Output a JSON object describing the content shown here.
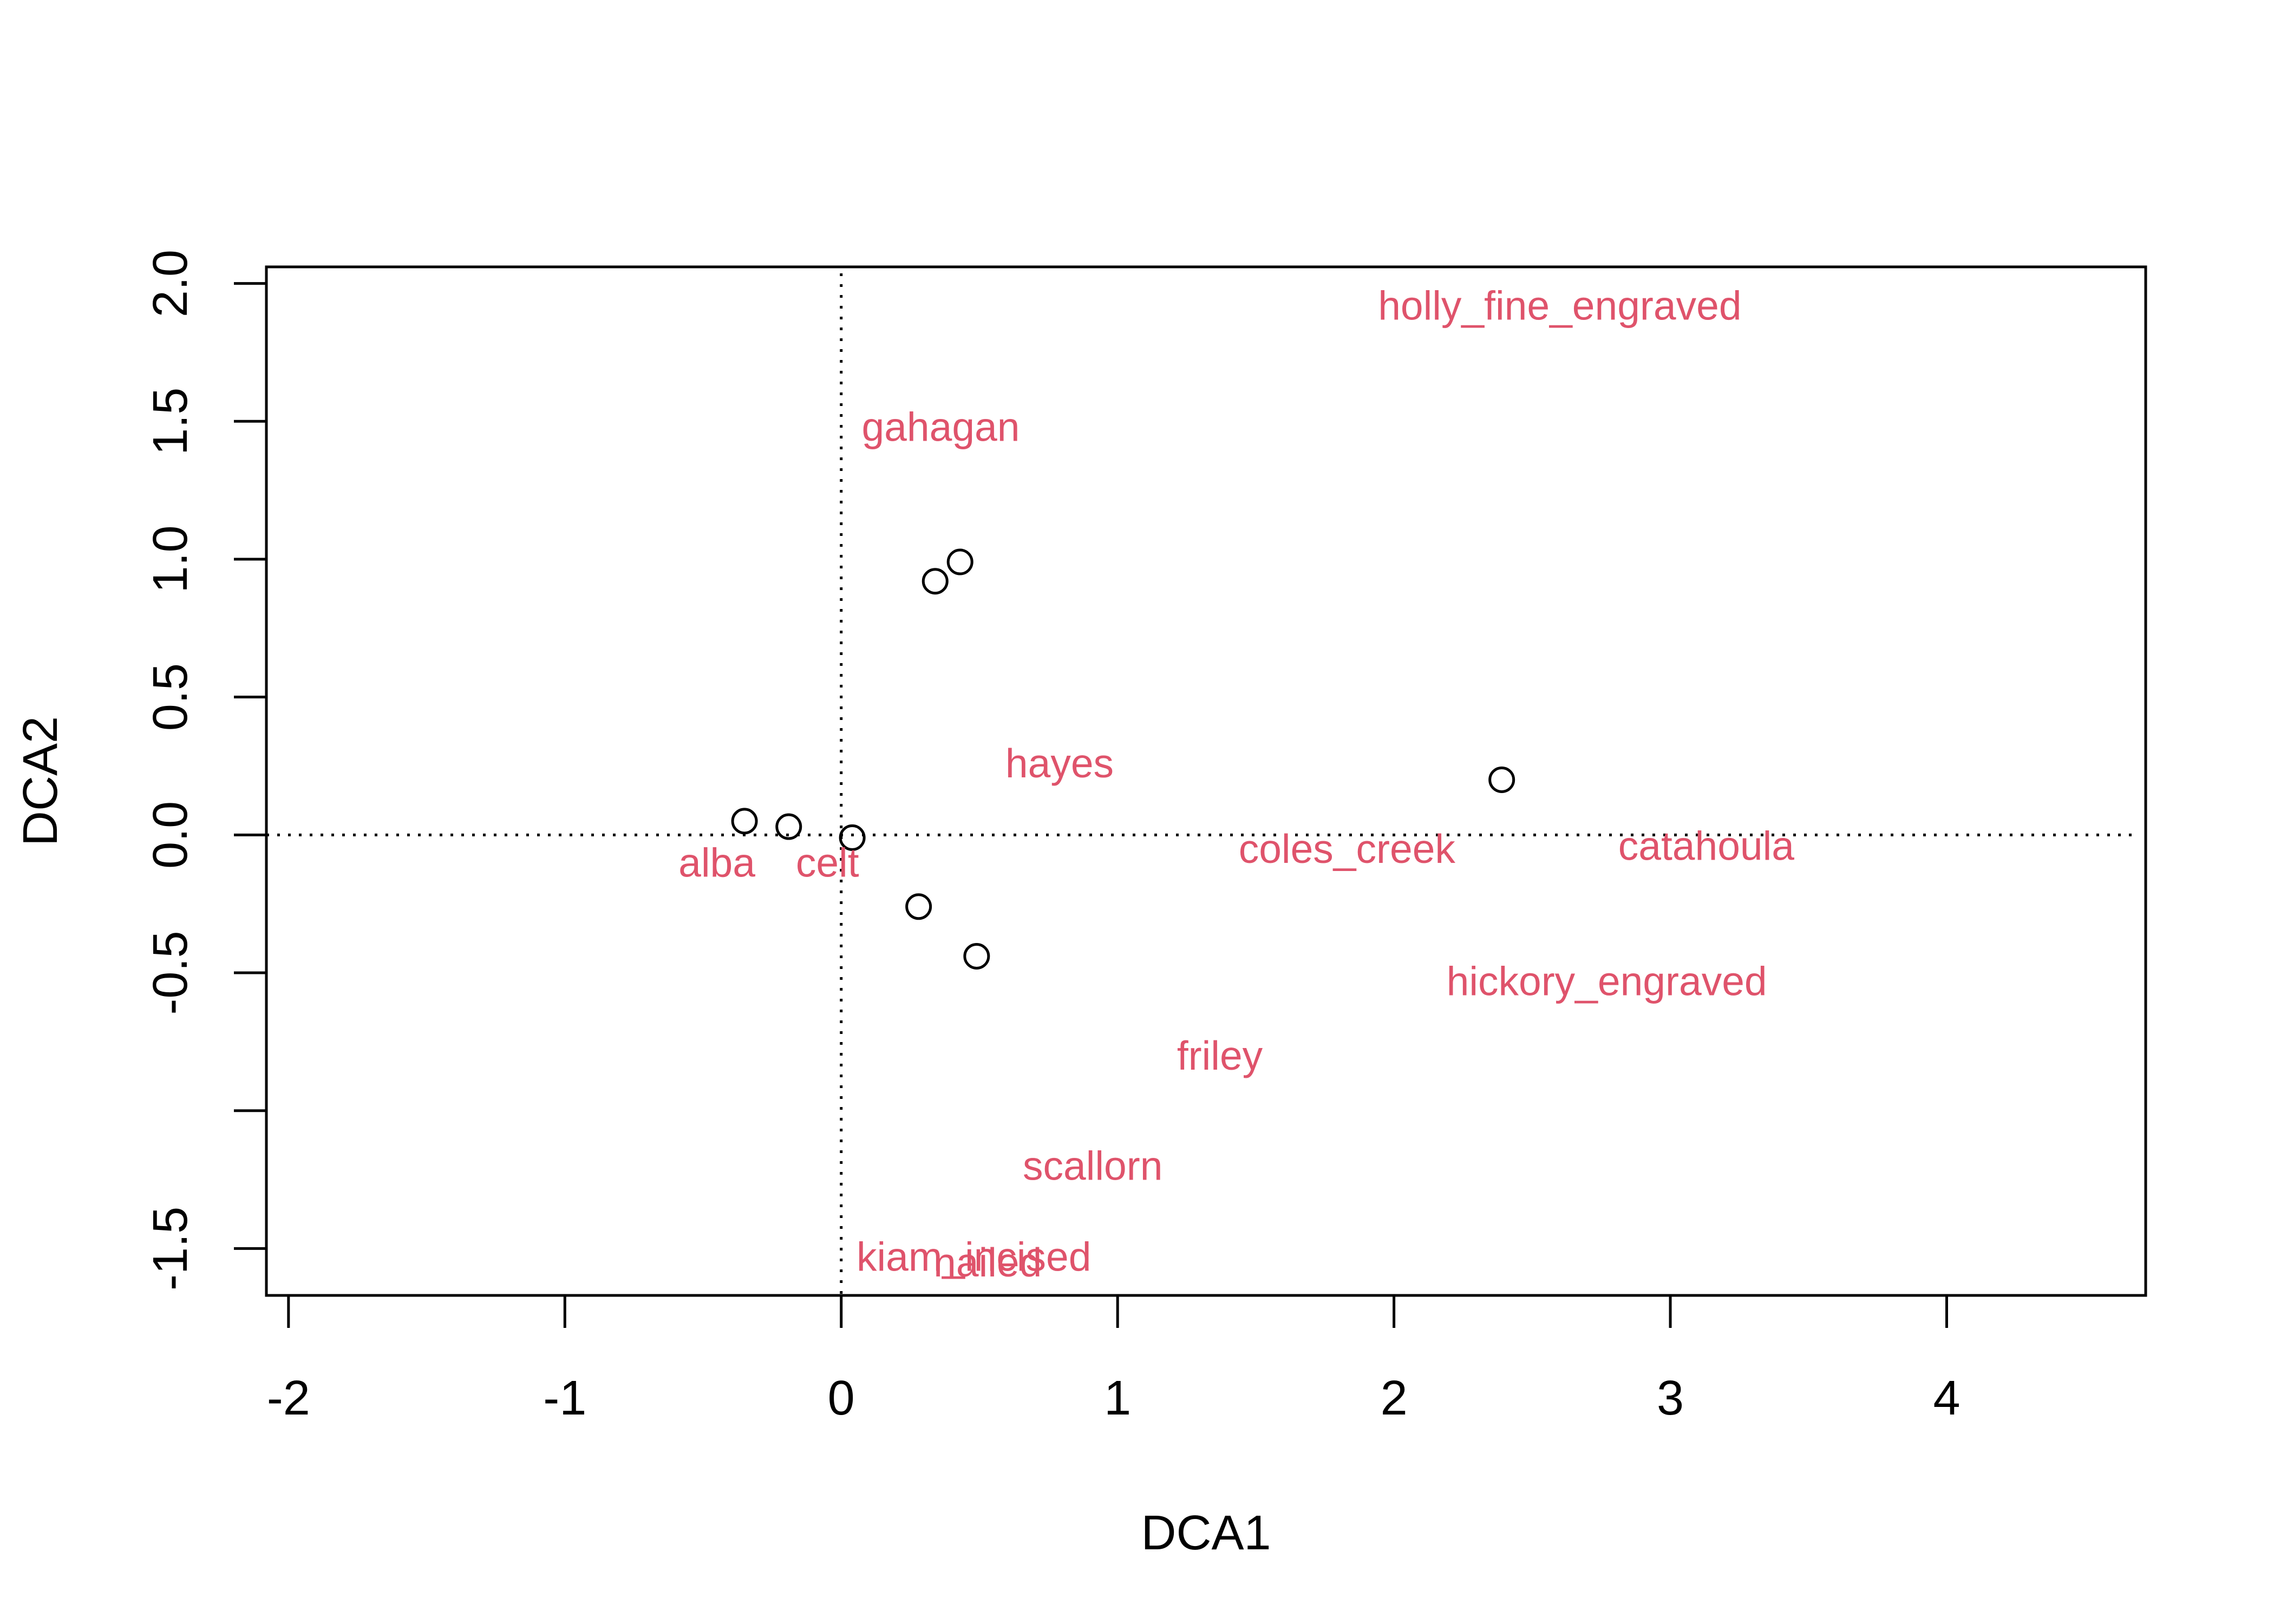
{
  "chart_data": {
    "type": "scatter",
    "title": "",
    "xlabel": "DCA1",
    "ylabel": "DCA2",
    "xlim": [
      -2.08,
      4.72
    ],
    "ylim": [
      -1.67,
      2.06
    ],
    "x_ticks": [
      -2,
      -1,
      0,
      1,
      2,
      3,
      4
    ],
    "y_ticks": [
      -1.5,
      -0.5,
      0.0,
      0.5,
      1.0,
      1.5,
      2.0
    ],
    "y_tick_labels": [
      "-1.5",
      "-0.5",
      "0.0",
      "0.5",
      "1.0",
      "1.5",
      "2.0"
    ],
    "y_minor_ticks": [
      -1.0
    ],
    "reference_lines": {
      "x": 0,
      "y": 0,
      "style": "dotted"
    },
    "grid": false,
    "colors": {
      "points": "#000000",
      "labels": "#DF536B",
      "axes": "#000000"
    },
    "sites": [
      {
        "x": -0.35,
        "y": 0.05
      },
      {
        "x": -0.19,
        "y": 0.03
      },
      {
        "x": 0.04,
        "y": -0.01
      },
      {
        "x": 0.34,
        "y": 0.92
      },
      {
        "x": 0.43,
        "y": 0.99
      },
      {
        "x": 0.28,
        "y": -0.26
      },
      {
        "x": 0.49,
        "y": -0.44
      },
      {
        "x": 2.39,
        "y": 0.2
      }
    ],
    "species": [
      {
        "label": "holly_fine_engraved",
        "x": 2.6,
        "y": 1.92
      },
      {
        "label": "gahagan",
        "x": 0.36,
        "y": 1.48
      },
      {
        "label": "hayes",
        "x": 0.79,
        "y": 0.26
      },
      {
        "label": "coles_creek",
        "x": 1.83,
        "y": -0.05
      },
      {
        "label": "catahoula",
        "x": 3.13,
        "y": -0.04
      },
      {
        "label": "alba",
        "x": -0.45,
        "y": -0.1
      },
      {
        "label": "celt",
        "x": -0.05,
        "y": -0.1
      },
      {
        "label": "hickory_engraved",
        "x": 2.77,
        "y": -0.53
      },
      {
        "label": "friley",
        "x": 1.37,
        "y": -0.8
      },
      {
        "label": "scallorn",
        "x": 0.91,
        "y": -1.2
      },
      {
        "label": "kiam_incised",
        "x": 0.48,
        "y": -1.53
      },
      {
        "label": "nailed",
        "x": 0.53,
        "y": -1.55
      }
    ]
  }
}
